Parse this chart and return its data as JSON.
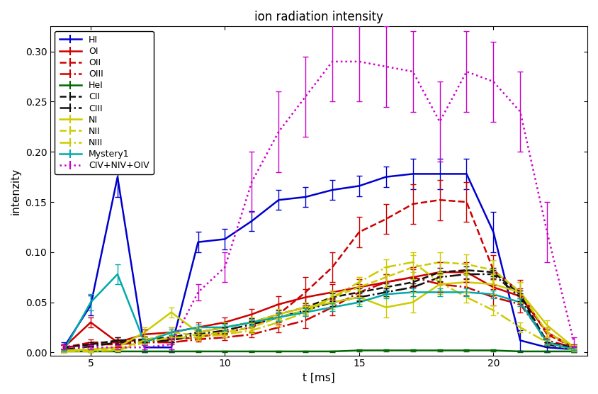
{
  "title": "ion radiation intensity",
  "xlabel": "t [ms]",
  "ylabel": "intenzity",
  "xlim": [
    3.5,
    23.5
  ],
  "ylim": [
    -0.003,
    0.325
  ],
  "xticks": [
    5,
    10,
    15,
    20
  ],
  "yticks": [
    0.0,
    0.05,
    0.1,
    0.15,
    0.2,
    0.25,
    0.3
  ],
  "bg_color": "#f0f0f0",
  "series": [
    {
      "label": "HI",
      "color": "#0000cc",
      "linestyle": "-",
      "linewidth": 1.8,
      "x": [
        4,
        5,
        6,
        7,
        8,
        9,
        10,
        11,
        12,
        13,
        14,
        15,
        16,
        17,
        18,
        19,
        20,
        21,
        22,
        23
      ],
      "y": [
        0.005,
        0.047,
        0.175,
        0.005,
        0.005,
        0.11,
        0.113,
        0.131,
        0.152,
        0.155,
        0.162,
        0.166,
        0.175,
        0.178,
        0.178,
        0.178,
        0.12,
        0.012,
        0.005,
        0.003
      ],
      "yerr": [
        0.005,
        0.01,
        0.02,
        0.005,
        0.005,
        0.01,
        0.01,
        0.01,
        0.01,
        0.01,
        0.01,
        0.01,
        0.01,
        0.015,
        0.015,
        0.015,
        0.02,
        0.01,
        0.005,
        0.003
      ]
    },
    {
      "label": "OI",
      "color": "#cc0000",
      "linestyle": "-",
      "linewidth": 1.8,
      "x": [
        4,
        5,
        6,
        7,
        8,
        9,
        10,
        11,
        12,
        13,
        14,
        15,
        16,
        17,
        18,
        19,
        20,
        21,
        22,
        23
      ],
      "y": [
        0.005,
        0.03,
        0.01,
        0.018,
        0.02,
        0.025,
        0.03,
        0.038,
        0.048,
        0.055,
        0.06,
        0.065,
        0.07,
        0.075,
        0.08,
        0.08,
        0.065,
        0.056,
        0.02,
        0.005
      ],
      "yerr": [
        0.003,
        0.005,
        0.005,
        0.005,
        0.005,
        0.005,
        0.005,
        0.005,
        0.008,
        0.008,
        0.008,
        0.008,
        0.008,
        0.01,
        0.01,
        0.01,
        0.008,
        0.008,
        0.005,
        0.003
      ]
    },
    {
      "label": "OII",
      "color": "#cc0000",
      "linestyle": "--",
      "linewidth": 1.8,
      "x": [
        4,
        5,
        6,
        7,
        8,
        9,
        10,
        11,
        12,
        13,
        14,
        15,
        16,
        17,
        18,
        19,
        20,
        21,
        22,
        23
      ],
      "y": [
        0.005,
        0.01,
        0.01,
        0.013,
        0.013,
        0.015,
        0.02,
        0.025,
        0.038,
        0.06,
        0.085,
        0.12,
        0.133,
        0.148,
        0.152,
        0.15,
        0.082,
        0.06,
        0.018,
        0.005
      ],
      "yerr": [
        0.003,
        0.003,
        0.003,
        0.003,
        0.003,
        0.003,
        0.005,
        0.005,
        0.01,
        0.015,
        0.015,
        0.015,
        0.015,
        0.02,
        0.02,
        0.02,
        0.015,
        0.012,
        0.005,
        0.003
      ]
    },
    {
      "label": "OIII",
      "color": "#cc0000",
      "linestyle": "-.",
      "linewidth": 1.8,
      "x": [
        4,
        5,
        6,
        7,
        8,
        9,
        10,
        11,
        12,
        13,
        14,
        15,
        16,
        17,
        18,
        19,
        20,
        21,
        22,
        23
      ],
      "y": [
        0.005,
        0.008,
        0.008,
        0.01,
        0.01,
        0.013,
        0.015,
        0.018,
        0.025,
        0.032,
        0.045,
        0.06,
        0.07,
        0.075,
        0.068,
        0.065,
        0.055,
        0.048,
        0.012,
        0.005
      ],
      "yerr": [
        0.002,
        0.002,
        0.002,
        0.002,
        0.002,
        0.002,
        0.003,
        0.003,
        0.005,
        0.008,
        0.008,
        0.008,
        0.008,
        0.008,
        0.008,
        0.008,
        0.008,
        0.008,
        0.003,
        0.002
      ]
    },
    {
      "label": "HeI",
      "color": "#006600",
      "linestyle": "-",
      "linewidth": 1.8,
      "x": [
        4,
        5,
        6,
        7,
        8,
        9,
        10,
        11,
        12,
        13,
        14,
        15,
        16,
        17,
        18,
        19,
        20,
        21,
        22,
        23
      ],
      "y": [
        0.001,
        0.001,
        0.001,
        0.001,
        0.001,
        0.001,
        0.001,
        0.001,
        0.001,
        0.001,
        0.001,
        0.002,
        0.002,
        0.002,
        0.002,
        0.002,
        0.002,
        0.001,
        0.001,
        0.001
      ],
      "yerr": [
        0.0005,
        0.0005,
        0.0005,
        0.0005,
        0.0005,
        0.0005,
        0.0005,
        0.0005,
        0.0005,
        0.0005,
        0.0005,
        0.001,
        0.001,
        0.001,
        0.001,
        0.001,
        0.001,
        0.0005,
        0.0005,
        0.0005
      ]
    },
    {
      "label": "CII",
      "color": "#111111",
      "linestyle": "--",
      "linewidth": 1.8,
      "x": [
        4,
        5,
        6,
        7,
        8,
        9,
        10,
        11,
        12,
        13,
        14,
        15,
        16,
        17,
        18,
        19,
        20,
        21,
        22,
        23
      ],
      "y": [
        0.005,
        0.008,
        0.012,
        0.013,
        0.015,
        0.02,
        0.025,
        0.03,
        0.038,
        0.045,
        0.055,
        0.06,
        0.065,
        0.07,
        0.08,
        0.082,
        0.08,
        0.058,
        0.01,
        0.005
      ],
      "yerr": [
        0.002,
        0.002,
        0.003,
        0.003,
        0.003,
        0.003,
        0.004,
        0.004,
        0.004,
        0.004,
        0.004,
        0.004,
        0.004,
        0.004,
        0.004,
        0.004,
        0.004,
        0.004,
        0.003,
        0.002
      ]
    },
    {
      "label": "CIII",
      "color": "#111111",
      "linestyle": "-.",
      "linewidth": 1.8,
      "x": [
        4,
        5,
        6,
        7,
        8,
        9,
        10,
        11,
        12,
        13,
        14,
        15,
        16,
        17,
        18,
        19,
        20,
        21,
        22,
        23
      ],
      "y": [
        0.003,
        0.006,
        0.01,
        0.011,
        0.012,
        0.018,
        0.022,
        0.028,
        0.035,
        0.042,
        0.05,
        0.055,
        0.06,
        0.065,
        0.075,
        0.078,
        0.078,
        0.055,
        0.008,
        0.003
      ],
      "yerr": [
        0.001,
        0.002,
        0.002,
        0.002,
        0.002,
        0.003,
        0.003,
        0.003,
        0.004,
        0.004,
        0.004,
        0.004,
        0.004,
        0.004,
        0.004,
        0.004,
        0.004,
        0.004,
        0.002,
        0.001
      ]
    },
    {
      "label": "NI",
      "color": "#cccc00",
      "linestyle": "-",
      "linewidth": 1.8,
      "x": [
        4,
        5,
        6,
        7,
        8,
        9,
        10,
        11,
        12,
        13,
        14,
        15,
        16,
        17,
        18,
        19,
        20,
        21,
        22,
        23
      ],
      "y": [
        0.002,
        0.003,
        0.005,
        0.02,
        0.04,
        0.02,
        0.025,
        0.03,
        0.038,
        0.045,
        0.05,
        0.055,
        0.045,
        0.05,
        0.068,
        0.07,
        0.068,
        0.06,
        0.027,
        0.005
      ],
      "yerr": [
        0.001,
        0.001,
        0.002,
        0.005,
        0.005,
        0.005,
        0.005,
        0.005,
        0.005,
        0.005,
        0.007,
        0.007,
        0.01,
        0.01,
        0.01,
        0.01,
        0.01,
        0.01,
        0.005,
        0.002
      ]
    },
    {
      "label": "NII",
      "color": "#cccc00",
      "linestyle": "--",
      "linewidth": 1.8,
      "x": [
        4,
        5,
        6,
        7,
        8,
        9,
        10,
        11,
        12,
        13,
        14,
        15,
        16,
        17,
        18,
        19,
        20,
        21,
        22,
        23
      ],
      "y": [
        0.001,
        0.002,
        0.003,
        0.012,
        0.02,
        0.017,
        0.02,
        0.025,
        0.035,
        0.042,
        0.055,
        0.065,
        0.075,
        0.085,
        0.09,
        0.088,
        0.082,
        0.06,
        0.02,
        0.005
      ],
      "yerr": [
        0.001,
        0.001,
        0.001,
        0.003,
        0.005,
        0.003,
        0.003,
        0.004,
        0.004,
        0.004,
        0.007,
        0.01,
        0.01,
        0.012,
        0.01,
        0.01,
        0.01,
        0.01,
        0.005,
        0.002
      ]
    },
    {
      "label": "NIII",
      "color": "#cccc00",
      "linestyle": "-.",
      "linewidth": 1.8,
      "x": [
        4,
        5,
        6,
        7,
        8,
        9,
        10,
        11,
        12,
        13,
        14,
        15,
        16,
        17,
        18,
        19,
        20,
        21,
        22,
        23
      ],
      "y": [
        0.001,
        0.001,
        0.002,
        0.01,
        0.015,
        0.015,
        0.018,
        0.022,
        0.03,
        0.04,
        0.055,
        0.07,
        0.085,
        0.09,
        0.07,
        0.055,
        0.042,
        0.025,
        0.01,
        0.002
      ],
      "yerr": [
        0.001,
        0.001,
        0.001,
        0.002,
        0.003,
        0.003,
        0.003,
        0.003,
        0.004,
        0.004,
        0.005,
        0.005,
        0.008,
        0.01,
        0.008,
        0.005,
        0.005,
        0.005,
        0.002,
        0.001
      ]
    },
    {
      "label": "Mystery1",
      "color": "#00aaaa",
      "linestyle": "-",
      "linewidth": 1.8,
      "x": [
        4,
        5,
        6,
        7,
        8,
        9,
        10,
        11,
        12,
        13,
        14,
        15,
        16,
        17,
        18,
        19,
        20,
        21,
        22,
        23
      ],
      "y": [
        0.002,
        0.05,
        0.078,
        0.01,
        0.02,
        0.025,
        0.025,
        0.03,
        0.035,
        0.04,
        0.045,
        0.05,
        0.058,
        0.06,
        0.06,
        0.06,
        0.058,
        0.05,
        0.01,
        0.003
      ],
      "yerr": [
        0.001,
        0.008,
        0.01,
        0.003,
        0.003,
        0.003,
        0.003,
        0.003,
        0.004,
        0.004,
        0.004,
        0.004,
        0.004,
        0.004,
        0.004,
        0.004,
        0.004,
        0.004,
        0.003,
        0.001
      ]
    },
    {
      "label": "CIV+NIV+OIV",
      "color": "#cc00cc",
      "linestyle": ":",
      "linewidth": 1.8,
      "x": [
        4,
        5,
        6,
        7,
        8,
        9,
        10,
        11,
        12,
        13,
        14,
        15,
        16,
        17,
        18,
        19,
        20,
        21,
        22,
        23
      ],
      "y": [
        0.005,
        0.005,
        0.005,
        0.005,
        0.008,
        0.06,
        0.085,
        0.17,
        0.22,
        0.255,
        0.29,
        0.29,
        0.285,
        0.28,
        0.23,
        0.28,
        0.27,
        0.24,
        0.12,
        0.01
      ],
      "yerr": [
        0.002,
        0.002,
        0.002,
        0.002,
        0.005,
        0.008,
        0.015,
        0.03,
        0.04,
        0.04,
        0.04,
        0.04,
        0.04,
        0.04,
        0.04,
        0.04,
        0.04,
        0.04,
        0.03,
        0.005
      ]
    }
  ]
}
